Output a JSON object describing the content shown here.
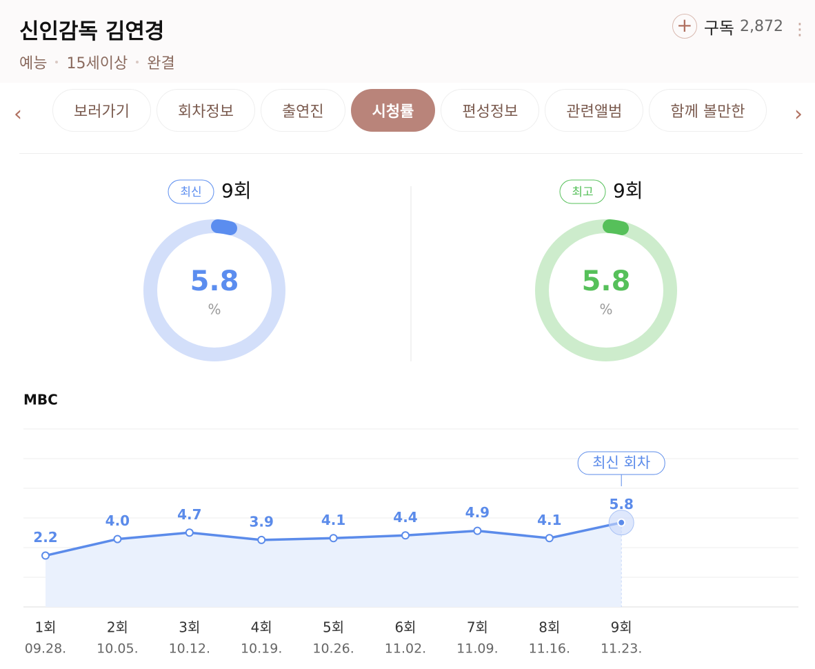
{
  "header": {
    "title": "신인감독 김연경",
    "meta": [
      "예능",
      "15세이상",
      "완결"
    ],
    "subscribe": "구독",
    "subscribers": "2,872"
  },
  "tabs": {
    "items": [
      "보러가기",
      "회차정보",
      "출연진",
      "시청률",
      "편성정보",
      "관련앨범",
      "함께 볼만한"
    ],
    "active": 3
  },
  "summary": [
    {
      "badge": "최신",
      "episode": "9회",
      "value": 5.8,
      "unit": "%",
      "color": "#5b8def",
      "light": "#d3dffa"
    },
    {
      "badge": "최고",
      "episode": "9회",
      "value": 5.8,
      "unit": "%",
      "color": "#56c05a",
      "light": "#cdeccc"
    }
  ],
  "chart_data": {
    "type": "line",
    "title": "MBC",
    "categories": [
      "1회",
      "2회",
      "3회",
      "4회",
      "5회",
      "6회",
      "7회",
      "8회",
      "9회"
    ],
    "dates": [
      "09.28.",
      "10.05.",
      "10.12.",
      "10.19.",
      "10.26.",
      "11.02.",
      "11.09.",
      "11.16.",
      "11.23."
    ],
    "values": [
      2.2,
      4.0,
      4.7,
      3.9,
      4.1,
      4.4,
      4.9,
      4.1,
      5.8
    ],
    "value_labels": [
      "2.2",
      "4.0",
      "4.7",
      "3.9",
      "4.1",
      "4.4",
      "4.9",
      "4.1",
      "5.8"
    ],
    "color": "#5b8bea",
    "ylim": [
      -3.4,
      16
    ],
    "grid": true,
    "annotation": "최신 회차"
  }
}
